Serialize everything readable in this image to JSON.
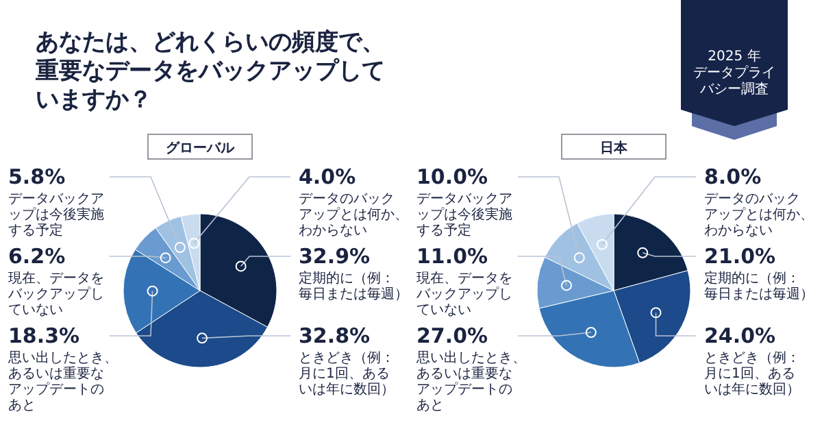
{
  "chart_data": [
    {
      "type": "pie",
      "title": "あなたは、どれくらいの頻度で、重要なデータをバックアップしていますか？",
      "subtitle": "グローバル",
      "annotations": [
        "2025 年データプライバシー調査"
      ],
      "categories": [
        "定期的に（例：毎日または毎週）",
        "ときどき（例：月に1回、あるいは年に数回）",
        "思い出したとき、あるいは重要なアップデートのあと",
        "現在、データをバックアップしていない",
        "データバックアップは今後実施する予定",
        "データのバックアップとは何か、わからない"
      ],
      "values": [
        32.9,
        32.8,
        18.3,
        6.2,
        5.8,
        4.0
      ],
      "value_labels": [
        "32.9%",
        "32.8%",
        "18.3%",
        "6.2%",
        "5.8%",
        "4.0%"
      ],
      "colors": [
        "#0f2548",
        "#1c4a8a",
        "#3373b5",
        "#6a9bd0",
        "#9fc2e3",
        "#c9dcef"
      ]
    },
    {
      "type": "pie",
      "subtitle": "日本",
      "categories": [
        "定期的に（例：毎日または毎週）",
        "ときどき（例：月に1回、あるいは年に数回）",
        "思い出したとき、あるいは重要なアップデートのあと",
        "現在、データをバックアップしていない",
        "データバックアップは今後実施する予定",
        "データのバックアップとは何か、わからない"
      ],
      "values": [
        21.0,
        24.0,
        27.0,
        11.0,
        10.0,
        8.0
      ],
      "value_labels": [
        "21.0%",
        "24.0%",
        "27.0%",
        "11.0%",
        "10.0%",
        "8.0%"
      ],
      "colors": [
        "#0f2548",
        "#1c4a8a",
        "#3373b5",
        "#6a9bd0",
        "#9fc2e3",
        "#c9dcef"
      ]
    }
  ]
}
